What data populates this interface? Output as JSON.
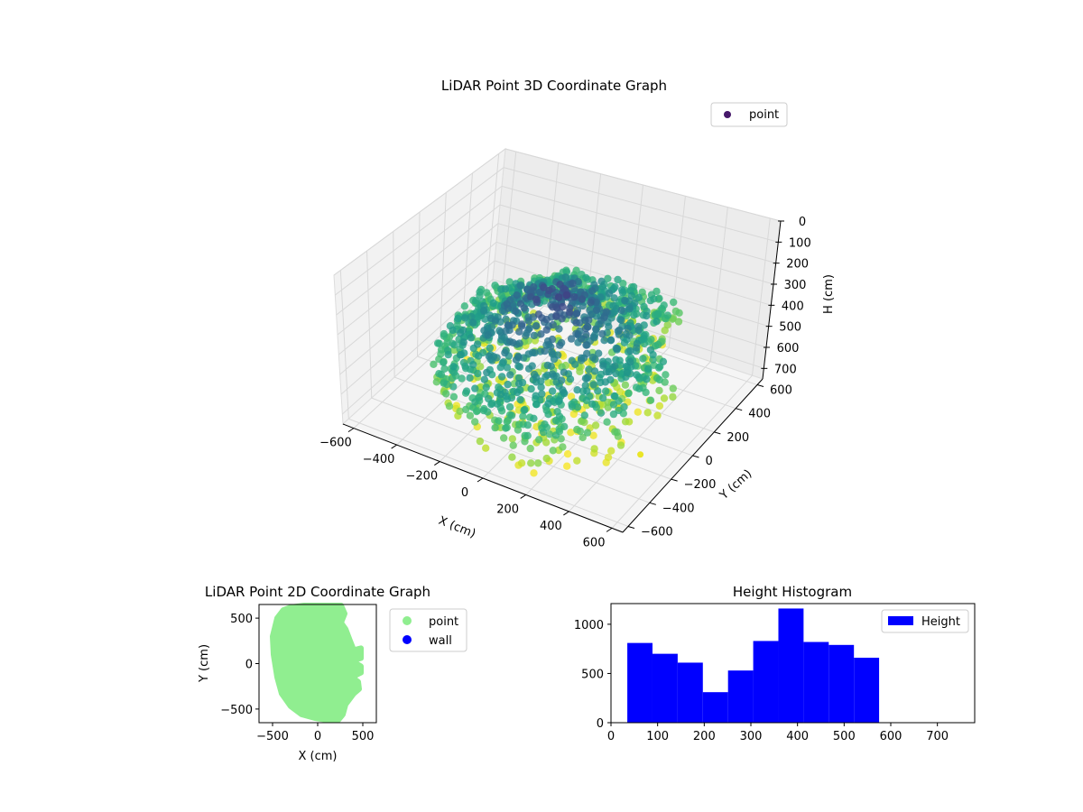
{
  "chart_data": [
    {
      "type": "scatter",
      "title": "LiDAR Point 3D Coordinate Graph",
      "xlabel": "X (cm)",
      "ylabel": "Y (cm)",
      "zlabel": "H (cm)",
      "xlim": [
        -650,
        650
      ],
      "ylim": [
        -650,
        650
      ],
      "zlim": [
        750,
        0
      ],
      "xticks": [
        "−600",
        "−400",
        "−200",
        "0",
        "200",
        "400",
        "600"
      ],
      "yticks": [
        "−600",
        "−400",
        "−200",
        "0",
        "200",
        "400",
        "600"
      ],
      "zticks": [
        "0",
        "100",
        "200",
        "300",
        "400",
        "500",
        "600",
        "700"
      ],
      "grid": true,
      "legend": {
        "placement": "top-right",
        "entries": [
          {
            "label": "point",
            "color": "#46186a"
          }
        ]
      },
      "colormap": "viridis",
      "series": [
        {
          "name": "point",
          "color_by": "height"
        }
      ]
    },
    {
      "type": "scatter",
      "title": "LiDAR Point 2D Coordinate Graph",
      "xlabel": "X (cm)",
      "ylabel": "Y (cm)",
      "xlim": [
        -650,
        650
      ],
      "ylim": [
        -650,
        650
      ],
      "xticks": [
        "−500",
        "0",
        "500"
      ],
      "yticks": [
        "−500",
        "0",
        "500"
      ],
      "legend": {
        "placement": "outside-right",
        "entries": [
          {
            "label": "point",
            "color": "#90ee90"
          },
          {
            "label": "wall",
            "color": "#0000ff"
          }
        ]
      },
      "series": [
        {
          "name": "point",
          "color": "#90ee90",
          "outline": [
            [
              -300,
              620
            ],
            [
              -150,
              670
            ],
            [
              0,
              680
            ],
            [
              150,
              670
            ],
            [
              260,
              640
            ],
            [
              300,
              550
            ],
            [
              260,
              450
            ],
            [
              310,
              380
            ],
            [
              360,
              250
            ],
            [
              400,
              150
            ],
            [
              480,
              170
            ],
            [
              480,
              60
            ],
            [
              380,
              30
            ],
            [
              480,
              -30
            ],
            [
              480,
              -100
            ],
            [
              380,
              -150
            ],
            [
              450,
              -200
            ],
            [
              460,
              -280
            ],
            [
              400,
              -330
            ],
            [
              310,
              -450
            ],
            [
              280,
              -560
            ],
            [
              230,
              -620
            ],
            [
              100,
              -620
            ],
            [
              -30,
              -600
            ],
            [
              -180,
              -560
            ],
            [
              -300,
              -470
            ],
            [
              -400,
              -330
            ],
            [
              -450,
              -150
            ],
            [
              -490,
              100
            ],
            [
              -500,
              300
            ],
            [
              -450,
              500
            ],
            [
              -380,
              590
            ]
          ]
        },
        {
          "name": "wall",
          "color": "#0000ff"
        }
      ]
    },
    {
      "type": "bar",
      "title": "Height Histogram",
      "xlim": [
        0,
        780
      ],
      "ylim": [
        0,
        1210
      ],
      "xticks": [
        "0",
        "100",
        "200",
        "300",
        "400",
        "500",
        "600",
        "700"
      ],
      "yticks": [
        "0",
        "500",
        "1000"
      ],
      "legend": {
        "placement": "top-right",
        "entries": [
          {
            "label": "Height",
            "color": "#0000ff"
          }
        ]
      },
      "series": [
        {
          "name": "Height",
          "color": "#0000ff",
          "bins": [
            {
              "x0": 35,
              "x1": 89,
              "value": 810
            },
            {
              "x0": 89,
              "x1": 143,
              "value": 700
            },
            {
              "x0": 143,
              "x1": 197,
              "value": 610
            },
            {
              "x0": 197,
              "x1": 251,
              "value": 310
            },
            {
              "x0": 251,
              "x1": 305,
              "value": 530
            },
            {
              "x0": 305,
              "x1": 359,
              "value": 830
            },
            {
              "x0": 359,
              "x1": 413,
              "value": 1160
            },
            {
              "x0": 413,
              "x1": 467,
              "value": 820
            },
            {
              "x0": 467,
              "x1": 521,
              "value": 790
            },
            {
              "x0": 521,
              "x1": 575,
              "value": 660
            }
          ]
        }
      ]
    }
  ]
}
